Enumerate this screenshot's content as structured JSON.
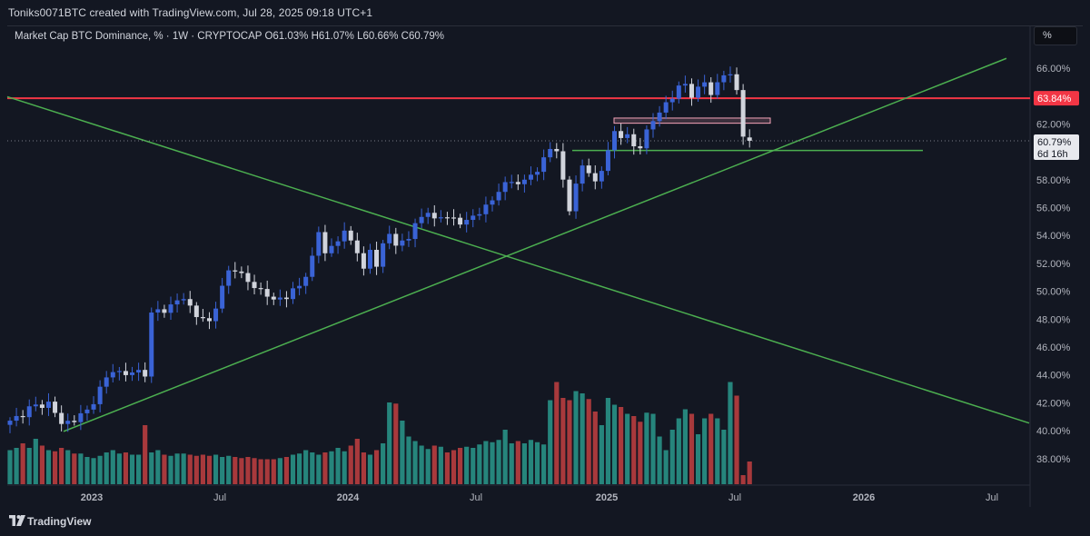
{
  "credit": "Toniks0071BTC created with TradingView.com, Jul 28, 2025 09:18 UTC+1",
  "symbol_info": "Market Cap BTC Dominance, % · 1W · CRYPTOCAP  O61.03%  H61.07%  L60.66%  C60.79%",
  "scale_button": "%",
  "brand": "TradingView",
  "colors": {
    "background": "#131722",
    "up_candle": "#3a63d6",
    "down_candle": "#d1d4dc",
    "vol_up": "#26857c",
    "vol_down": "#a8393c",
    "resistance": "#f23645",
    "trendline": "#4caf50",
    "zone": "#f5a3b8"
  },
  "chart_data": {
    "type": "candlestick",
    "title": "Market Cap BTC Dominance, %",
    "timeframe": "1W",
    "exchange": "CRYPTOCAP",
    "ohlc_last": {
      "open": 61.03,
      "high": 61.07,
      "low": 60.66,
      "close": 60.79
    },
    "ylim": [
      36.2,
      67.5
    ],
    "y_ticks": [
      "38.00%",
      "40.00%",
      "42.00%",
      "44.00%",
      "46.00%",
      "48.00%",
      "50.00%",
      "52.00%",
      "54.00%",
      "56.00%",
      "58.00%",
      "60.00%",
      "62.00%",
      "64.00%",
      "66.00%"
    ],
    "x_ticks": [
      "2023",
      "Jul",
      "2024",
      "Jul",
      "2025",
      "Jul",
      "2026",
      "Jul"
    ],
    "weekly_close_path": [
      [
        0,
        40.6
      ],
      [
        3,
        41.6
      ],
      [
        6,
        42.0
      ],
      [
        8,
        40.5
      ],
      [
        10,
        40.8
      ],
      [
        12,
        41.4
      ],
      [
        14,
        43.0
      ],
      [
        16,
        44.4
      ],
      [
        18,
        44.0
      ],
      [
        20,
        44.3
      ],
      [
        21,
        44.1
      ],
      [
        22,
        48.3
      ],
      [
        23,
        48.6
      ],
      [
        25,
        48.9
      ],
      [
        27,
        49.6
      ],
      [
        29,
        48.2
      ],
      [
        31,
        47.8
      ],
      [
        33,
        50.2
      ],
      [
        34,
        51.4
      ],
      [
        35,
        51.7
      ],
      [
        37,
        50.6
      ],
      [
        39,
        50.1
      ],
      [
        41,
        49.3
      ],
      [
        43,
        49.7
      ],
      [
        45,
        50.3
      ],
      [
        46,
        51.3
      ],
      [
        47,
        52.4
      ],
      [
        48,
        54.2
      ],
      [
        49,
        52.8
      ],
      [
        50,
        53.2
      ],
      [
        52,
        54.2
      ],
      [
        53,
        53.6
      ],
      [
        54,
        53.0
      ],
      [
        55,
        51.4
      ],
      [
        56,
        52.9
      ],
      [
        57,
        52.0
      ],
      [
        58,
        53.3
      ],
      [
        59,
        54.1
      ],
      [
        60,
        53.3
      ],
      [
        62,
        53.9
      ],
      [
        63,
        54.7
      ],
      [
        65,
        55.9
      ],
      [
        66,
        55.0
      ],
      [
        68,
        55.5
      ],
      [
        70,
        54.8
      ],
      [
        72,
        55.4
      ],
      [
        74,
        56.0
      ],
      [
        75,
        56.5
      ],
      [
        76,
        57.4
      ],
      [
        78,
        57.8
      ],
      [
        80,
        57.9
      ],
      [
        81,
        58.4
      ],
      [
        82,
        58.5
      ],
      [
        83,
        59.6
      ],
      [
        84,
        60.4
      ],
      [
        85,
        59.8
      ],
      [
        86,
        58.0
      ],
      [
        87,
        56.0
      ],
      [
        88,
        57.5
      ],
      [
        89,
        59.0
      ],
      [
        90,
        58.6
      ],
      [
        91,
        57.8
      ],
      [
        92,
        58.7
      ],
      [
        93,
        60.0
      ],
      [
        94,
        61.5
      ],
      [
        95,
        61.2
      ],
      [
        96,
        61.0
      ],
      [
        97,
        60.4
      ],
      [
        98,
        60.5
      ],
      [
        99,
        61.4
      ],
      [
        100,
        62.2
      ],
      [
        101,
        62.9
      ],
      [
        102,
        63.5
      ],
      [
        103,
        63.9
      ],
      [
        104,
        64.6
      ],
      [
        105,
        64.9
      ],
      [
        106,
        64.1
      ],
      [
        107,
        64.4
      ],
      [
        108,
        65.0
      ],
      [
        109,
        64.3
      ],
      [
        110,
        64.8
      ],
      [
        111,
        65.5
      ],
      [
        112,
        65.6
      ],
      [
        113,
        64.4
      ],
      [
        114,
        61.2
      ],
      [
        115,
        60.79
      ]
    ],
    "volume_relative": [
      0.3,
      0.32,
      0.36,
      0.32,
      0.4,
      0.34,
      0.3,
      0.29,
      0.32,
      0.3,
      0.27,
      0.27,
      0.24,
      0.23,
      0.25,
      0.28,
      0.3,
      0.27,
      0.28,
      0.26,
      0.26,
      0.52,
      0.28,
      0.3,
      0.26,
      0.25,
      0.27,
      0.27,
      0.26,
      0.25,
      0.26,
      0.25,
      0.26,
      0.24,
      0.25,
      0.24,
      0.23,
      0.24,
      0.23,
      0.22,
      0.22,
      0.22,
      0.23,
      0.24,
      0.26,
      0.27,
      0.3,
      0.28,
      0.26,
      0.28,
      0.29,
      0.32,
      0.29,
      0.34,
      0.4,
      0.28,
      0.26,
      0.3,
      0.36,
      0.72,
      0.71,
      0.56,
      0.42,
      0.38,
      0.34,
      0.31,
      0.34,
      0.33,
      0.28,
      0.3,
      0.32,
      0.33,
      0.32,
      0.35,
      0.38,
      0.37,
      0.39,
      0.48,
      0.36,
      0.38,
      0.36,
      0.39,
      0.37,
      0.35,
      0.74,
      0.9,
      0.76,
      0.74,
      0.82,
      0.8,
      0.75,
      0.64,
      0.52,
      0.76,
      0.7,
      0.68,
      0.62,
      0.6,
      0.55,
      0.63,
      0.62,
      0.42,
      0.3,
      0.48,
      0.58,
      0.66,
      0.62,
      0.44,
      0.58,
      0.62,
      0.58,
      0.48,
      0.9,
      0.78,
      0.08
    ],
    "drawings": {
      "resistance_level": 63.84,
      "support_level": 60.1,
      "rejection_zone": [
        62.05,
        62.42
      ],
      "trendlines": [
        "ascending support",
        "descending trendline"
      ]
    },
    "price_labels": [
      {
        "text": "63.84%",
        "kind": "resistance"
      },
      {
        "text": "60.79%",
        "kind": "last"
      },
      {
        "text": "6d 16h",
        "kind": "countdown"
      }
    ]
  }
}
